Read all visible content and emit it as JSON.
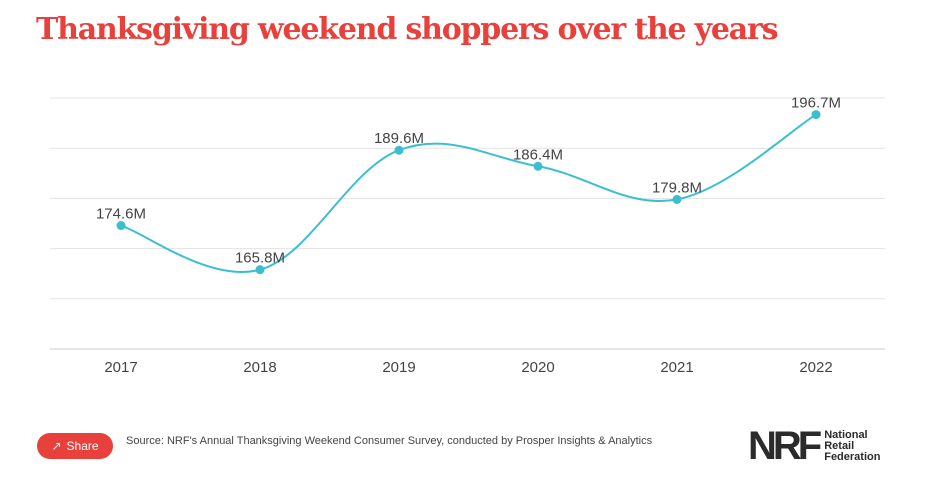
{
  "title": "Thanksgiving weekend shoppers over the years",
  "chart_data": {
    "type": "line",
    "title": "Thanksgiving weekend shoppers over the years",
    "categories": [
      "2017",
      "2018",
      "2019",
      "2020",
      "2021",
      "2022"
    ],
    "values": [
      174.6,
      165.8,
      189.6,
      186.4,
      179.8,
      196.7
    ],
    "labels": [
      "174.6M",
      "165.8M",
      "189.6M",
      "186.4M",
      "179.8M",
      "196.7M"
    ],
    "unit": "M",
    "ylim": [
      150,
      200
    ],
    "grid_step": 10,
    "grid": true,
    "line_color": "#3bbfd0"
  },
  "share_label": "Share",
  "source": "Source: NRF's Annual Thanksgiving Weekend Consumer Survey, conducted by Prosper Insights & Analytics",
  "logo": {
    "mark": "NRF",
    "lines": [
      "National",
      "Retail",
      "Federation"
    ]
  }
}
